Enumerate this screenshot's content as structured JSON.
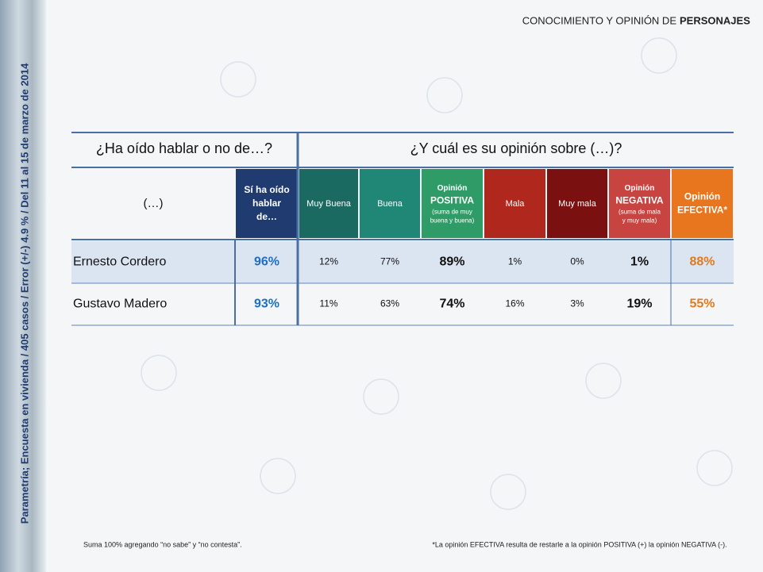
{
  "header": {
    "title": "CONOCIMIENTO Y OPINIÓN DE",
    "title_bold": "PERSONAJES"
  },
  "side_note": "Parametría; Encuesta en vivienda / 405 casos / Error (+/-) 4.9 % / Del 11 al 15 de marzo de 2014",
  "table": {
    "group_headers": [
      "¿Ha oído hablar o no de…?",
      "¿Y cuál es su opinión sobre (…)?"
    ],
    "name_header": "(…)",
    "columns": [
      {
        "title": [
          "Sí ha oído",
          "hablar",
          "de…"
        ],
        "note": [],
        "color": "#1f3b70"
      },
      {
        "title": [
          "Muy Buena"
        ],
        "note": [],
        "color": "#1b6a62"
      },
      {
        "title": [
          "Buena"
        ],
        "note": [],
        "color": "#208676"
      },
      {
        "title": [
          "Opinión",
          "POSITIVA"
        ],
        "note": [
          "(suma de muy",
          "buena y buena)"
        ],
        "color": "#2f9c68"
      },
      {
        "title": [
          "Mala"
        ],
        "note": [],
        "color": "#b0281d"
      },
      {
        "title": [
          "Muy mala"
        ],
        "note": [],
        "color": "#7a1010"
      },
      {
        "title": [
          "Opinión",
          "NEGATIVA"
        ],
        "note": [
          "(suma de mala",
          "y muy mala)"
        ],
        "color": "#c84440"
      },
      {
        "title": [
          "Opinión",
          "EFECTIVA*"
        ],
        "note": [],
        "color": "#e8761e"
      }
    ],
    "rows": [
      [
        "Ernesto Cordero",
        "96%",
        "12%",
        "77%",
        "89%",
        "1%",
        "0%",
        "1%",
        "88%"
      ],
      [
        "Gustavo Madero",
        "93%",
        "11%",
        "63%",
        "74%",
        "16%",
        "3%",
        "19%",
        "55%"
      ]
    ]
  },
  "footnotes": [
    "Suma 100%  agregando “no sabe” y “no contesta”.",
    "*La opinión EFECTIVA resulta de restarle a la opinión POSITIVA (+) la opinión NEGATIVA (-)."
  ]
}
